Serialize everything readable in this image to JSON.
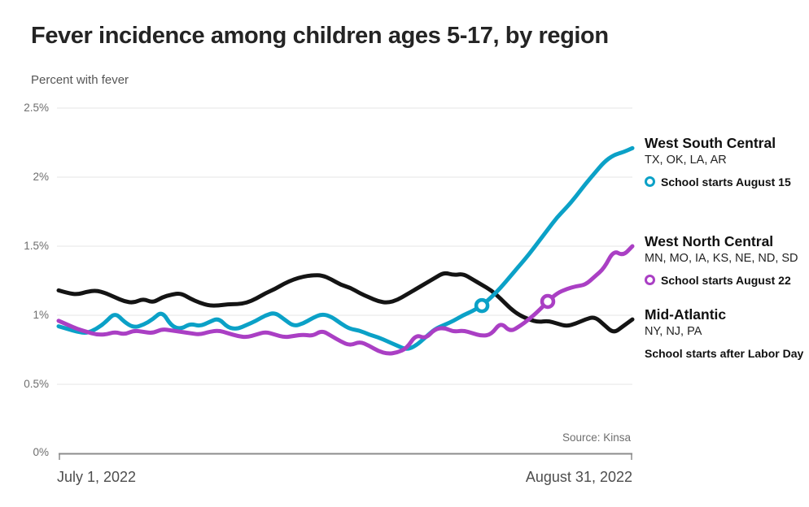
{
  "header": {
    "title": "Fever incidence among children ages 5-17, by region",
    "subtitle": "Percent with fever"
  },
  "source": "Source: Kinsa",
  "chart_data": {
    "type": "line",
    "title": "Fever incidence among children ages 5-17, by region",
    "ylabel": "Percent with fever",
    "grid": true,
    "legend_position": "right",
    "x_axis": {
      "start_label": "July 1, 2022",
      "end_label": "August 31, 2022",
      "resolution": "daily",
      "num_points": 62
    },
    "y_axis": {
      "unit": "%",
      "ylim": [
        0,
        2.5
      ],
      "ticks": [
        "2.5%",
        "2%",
        "1.5%",
        "1%",
        "0.5%",
        "0%"
      ]
    },
    "series": [
      {
        "name": "Mid-Atlantic",
        "states": "NY, NJ, PA",
        "note": "School starts after Labor Day",
        "color": "#141414",
        "marker_index": null,
        "values": [
          1.18,
          1.16,
          1.15,
          1.17,
          1.18,
          1.16,
          1.13,
          1.1,
          1.09,
          1.12,
          1.09,
          1.13,
          1.15,
          1.16,
          1.12,
          1.09,
          1.07,
          1.07,
          1.08,
          1.08,
          1.09,
          1.12,
          1.16,
          1.19,
          1.23,
          1.26,
          1.28,
          1.29,
          1.29,
          1.26,
          1.22,
          1.2,
          1.16,
          1.13,
          1.1,
          1.09,
          1.11,
          1.15,
          1.19,
          1.23,
          1.27,
          1.31,
          1.29,
          1.3,
          1.26,
          1.22,
          1.18,
          1.12,
          1.05,
          1.0,
          0.97,
          0.95,
          0.96,
          0.94,
          0.92,
          0.94,
          0.97,
          0.99,
          0.93,
          0.87,
          0.92,
          0.97
        ]
      },
      {
        "name": "West South Central",
        "states": "TX, OK, LA, AR",
        "note": "School starts August 15",
        "color": "#0ba1c7",
        "marker_index": 45,
        "values": [
          0.92,
          0.9,
          0.88,
          0.87,
          0.9,
          0.95,
          1.02,
          0.95,
          0.91,
          0.93,
          0.97,
          1.03,
          0.92,
          0.9,
          0.94,
          0.92,
          0.95,
          0.98,
          0.91,
          0.9,
          0.93,
          0.96,
          1.0,
          1.02,
          0.97,
          0.92,
          0.94,
          0.98,
          1.01,
          0.99,
          0.94,
          0.9,
          0.89,
          0.86,
          0.84,
          0.81,
          0.78,
          0.75,
          0.78,
          0.84,
          0.9,
          0.93,
          0.96,
          1.0,
          1.03,
          1.07,
          1.13,
          1.2,
          1.28,
          1.36,
          1.44,
          1.53,
          1.62,
          1.71,
          1.78,
          1.86,
          1.95,
          2.03,
          2.11,
          2.16,
          2.18,
          2.21
        ]
      },
      {
        "name": "West North Central",
        "states": "MN, MO, IA, KS, NE, ND, SD",
        "note": "School starts August 22",
        "color": "#aa3fc4",
        "marker_index": 52,
        "values": [
          0.96,
          0.93,
          0.9,
          0.88,
          0.86,
          0.86,
          0.88,
          0.86,
          0.89,
          0.88,
          0.87,
          0.9,
          0.89,
          0.88,
          0.87,
          0.86,
          0.88,
          0.89,
          0.87,
          0.85,
          0.84,
          0.86,
          0.88,
          0.86,
          0.84,
          0.85,
          0.86,
          0.85,
          0.89,
          0.85,
          0.81,
          0.78,
          0.81,
          0.78,
          0.74,
          0.72,
          0.73,
          0.76,
          0.86,
          0.83,
          0.9,
          0.91,
          0.88,
          0.89,
          0.87,
          0.85,
          0.86,
          0.95,
          0.88,
          0.92,
          0.97,
          1.03,
          1.1,
          1.16,
          1.19,
          1.21,
          1.22,
          1.28,
          1.34,
          1.47,
          1.43,
          1.5
        ]
      }
    ],
    "annotations": {
      "marker_style": "open-circle",
      "axis_color": "#8c8c8c",
      "gridline_color": "#eaeaea"
    }
  },
  "legend_order": [
    1,
    2,
    0
  ]
}
